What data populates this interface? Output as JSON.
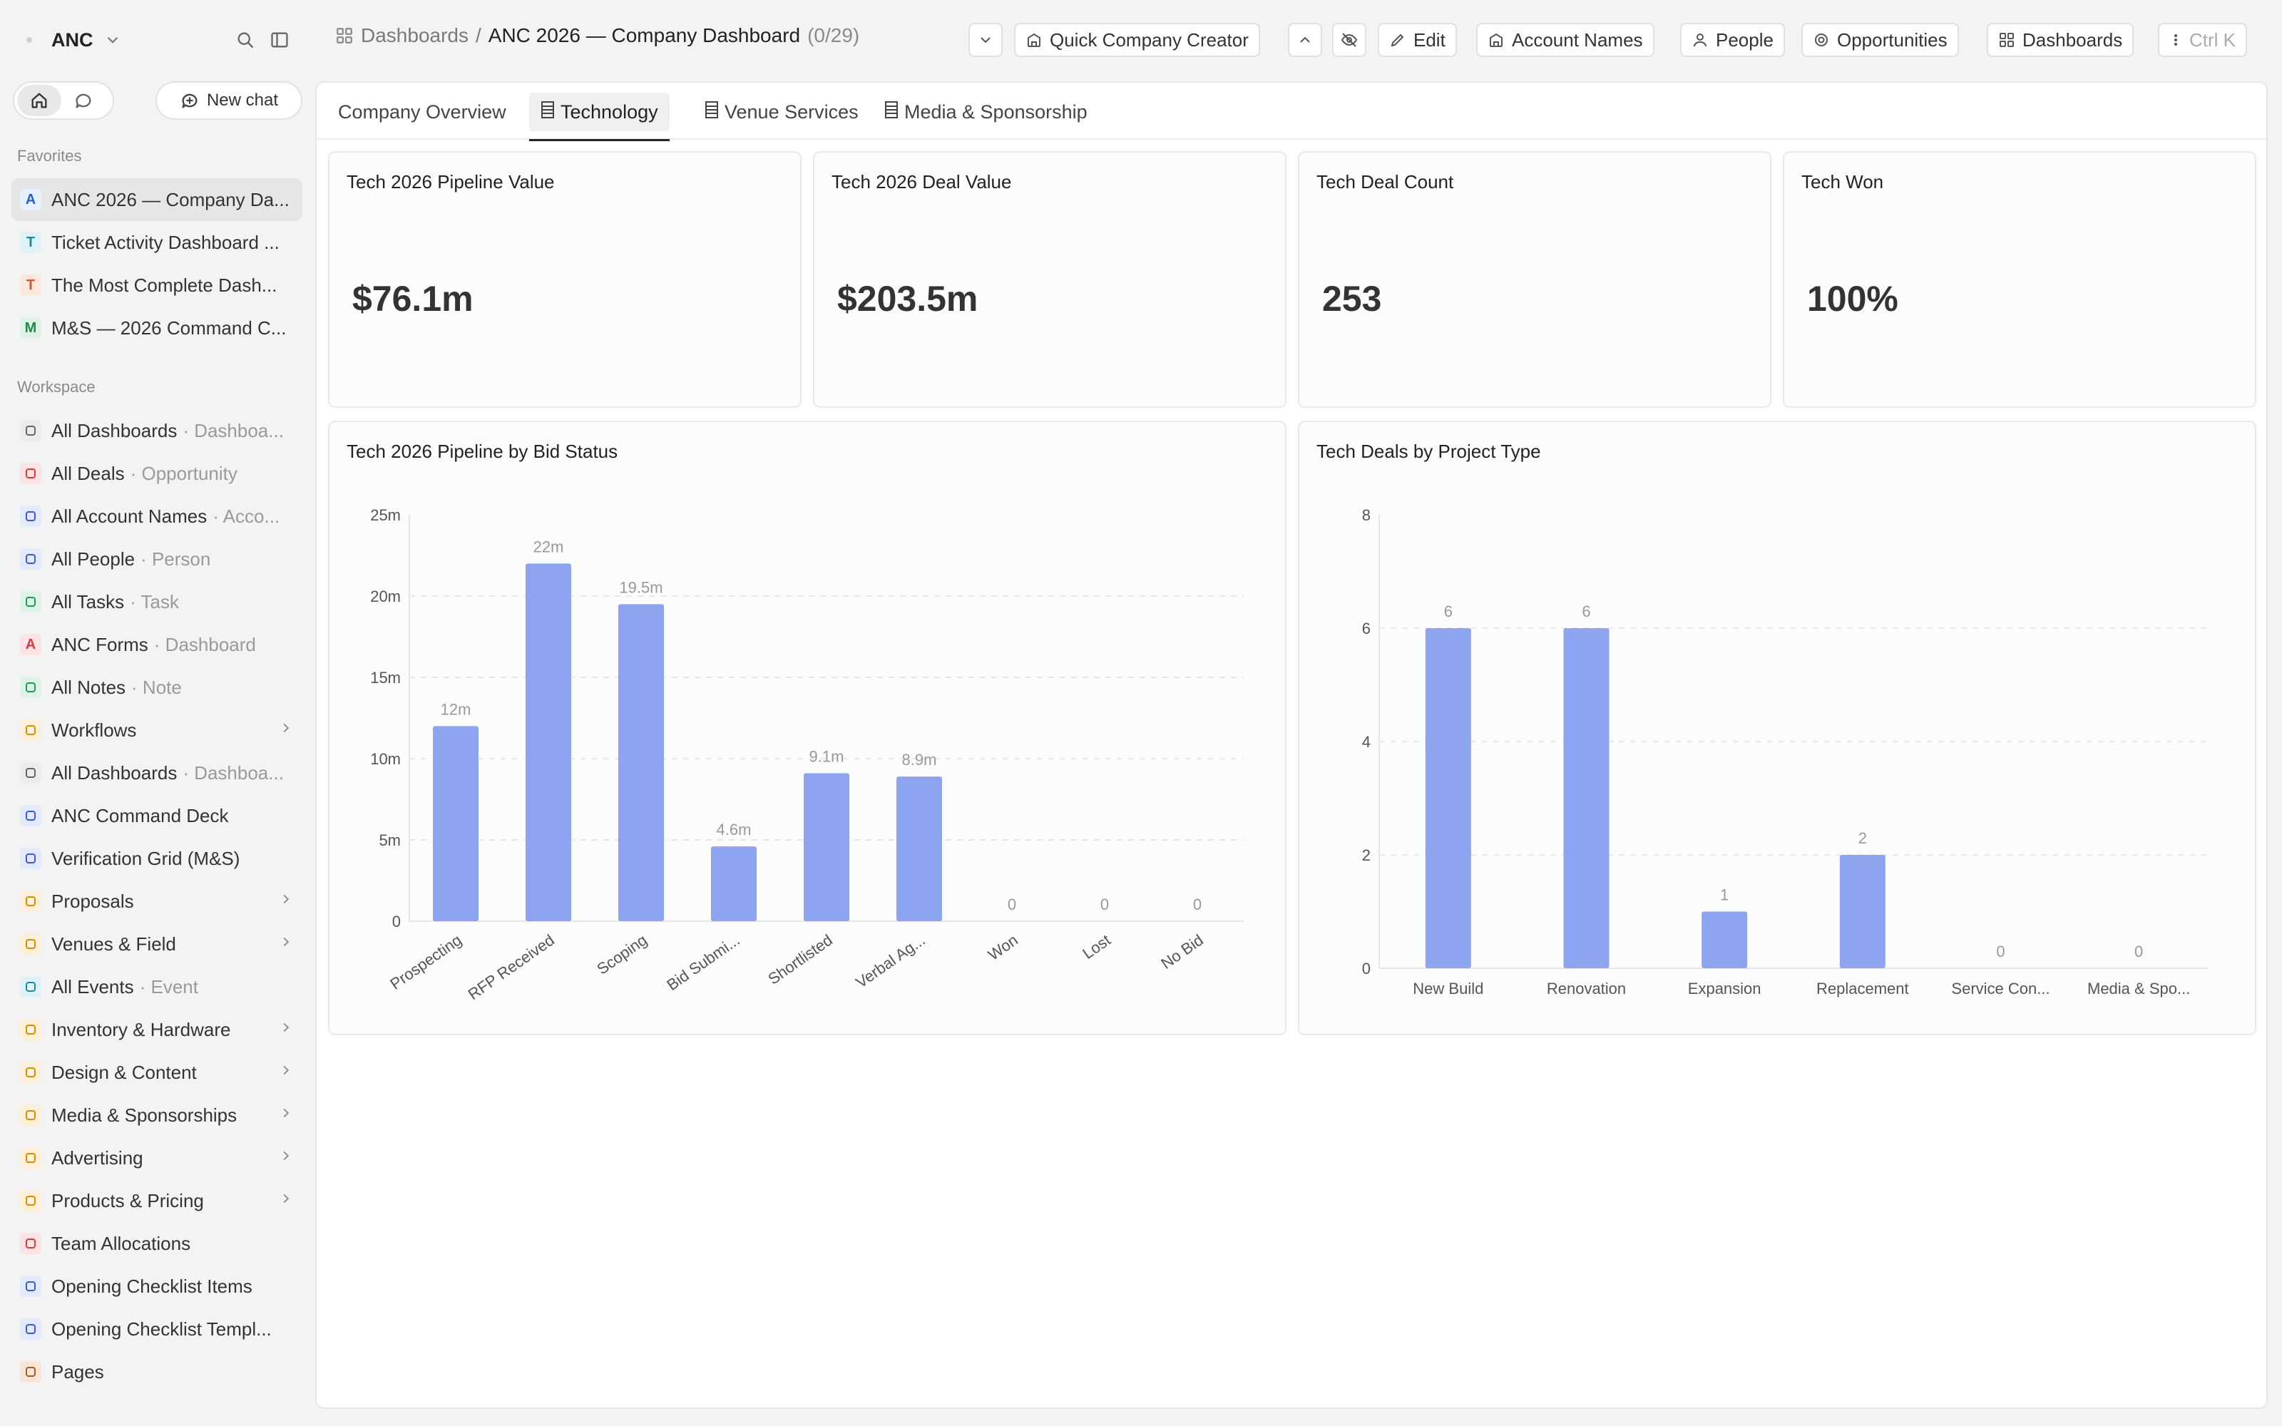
{
  "workspace": {
    "name": "ANC"
  },
  "sidebar": {
    "new_chat_label": "New chat",
    "favorites_label": "Favorites",
    "workspace_label": "Workspace",
    "favorites": [
      {
        "label": "ANC 2026 — Company Da...",
        "letter": "A",
        "bg": "#e6f0ff",
        "fg": "#2a5bd7",
        "active": true
      },
      {
        "label": "Ticket Activity Dashboard ...",
        "letter": "T",
        "bg": "#dff2f7",
        "fg": "#1b8aa8"
      },
      {
        "label": "The Most Complete Dash...",
        "letter": "T",
        "bg": "#fde8e0",
        "fg": "#d2562b"
      },
      {
        "label": "M&S — 2026 Command C...",
        "letter": "M",
        "bg": "#def3e6",
        "fg": "#1f8a4c"
      }
    ],
    "items": [
      {
        "label": "All Dashboards",
        "sub": "· Dashboa...",
        "icon": "dashboard-list-icon",
        "bg": "#ececec",
        "fg": "#666"
      },
      {
        "label": "All Deals",
        "sub": "· Opportunity",
        "icon": "target-icon",
        "bg": "#fde3e3",
        "fg": "#e03b3b"
      },
      {
        "label": "All Account Names",
        "sub": "· Acco...",
        "icon": "building-icon",
        "bg": "#e3e9ff",
        "fg": "#3b5bdb"
      },
      {
        "label": "All People",
        "sub": "· Person",
        "icon": "person-icon",
        "bg": "#e3e9ff",
        "fg": "#3b5bdb"
      },
      {
        "label": "All Tasks",
        "sub": "· Task",
        "icon": "task-check-icon",
        "bg": "#ddf3e6",
        "fg": "#1f9d55"
      },
      {
        "label": "ANC Forms",
        "sub": "· Dashboard",
        "icon": "letter-a-icon",
        "letter": "A",
        "bg": "#fde3e3",
        "fg": "#d63b3b"
      },
      {
        "label": "All Notes",
        "sub": "· Note",
        "icon": "note-icon",
        "bg": "#ddf3e6",
        "fg": "#1f9d55"
      },
      {
        "label": "Workflows",
        "sub": "",
        "icon": "workflow-icon",
        "bg": "#fff0d9",
        "fg": "#e08a00",
        "chev": true
      },
      {
        "label": "All Dashboards",
        "sub": "· Dashboa...",
        "icon": "dashboard-list-icon",
        "bg": "#ececec",
        "fg": "#666"
      },
      {
        "label": "ANC Command Deck",
        "sub": "",
        "icon": "grid-icon",
        "bg": "#e3e9ff",
        "fg": "#3b5bdb"
      },
      {
        "label": "Verification Grid (M&S)",
        "sub": "",
        "icon": "table-icon",
        "bg": "#e3e9ff",
        "fg": "#3b5bdb"
      },
      {
        "label": "Proposals",
        "sub": "",
        "icon": "chart-line-icon",
        "bg": "#fff0d9",
        "fg": "#e08a00",
        "chev": true
      },
      {
        "label": "Venues & Field",
        "sub": "",
        "icon": "building-icon",
        "bg": "#fff0d9",
        "fg": "#e08a00",
        "chev": true
      },
      {
        "label": "All Events",
        "sub": "· Event",
        "icon": "calendar-icon",
        "bg": "#dff2f7",
        "fg": "#1b8aa8"
      },
      {
        "label": "Inventory & Hardware",
        "sub": "",
        "icon": "box-icon",
        "bg": "#fff0d9",
        "fg": "#e08a00",
        "chev": true
      },
      {
        "label": "Design & Content",
        "sub": "",
        "icon": "palette-icon",
        "bg": "#fff0d9",
        "fg": "#e08a00",
        "chev": true
      },
      {
        "label": "Media & Sponsorships",
        "sub": "",
        "icon": "broadcast-icon",
        "bg": "#fff0d9",
        "fg": "#e08a00",
        "chev": true
      },
      {
        "label": "Advertising",
        "sub": "",
        "icon": "megaphone-icon",
        "bg": "#fff0d9",
        "fg": "#e08a00",
        "chev": true
      },
      {
        "label": "Products & Pricing",
        "sub": "",
        "icon": "box-icon",
        "bg": "#fff0d9",
        "fg": "#e08a00",
        "chev": true
      },
      {
        "label": "Team Allocations",
        "sub": "",
        "icon": "target-icon",
        "bg": "#fde3e3",
        "fg": "#e03b3b"
      },
      {
        "label": "Opening Checklist Items",
        "sub": "",
        "icon": "checklist-icon",
        "bg": "#e3e9ff",
        "fg": "#3b5bdb"
      },
      {
        "label": "Opening Checklist Templ...",
        "sub": "",
        "icon": "template-icon",
        "bg": "#e3e9ff",
        "fg": "#3b5bdb"
      },
      {
        "label": "Pages",
        "sub": "",
        "icon": "page-icon",
        "bg": "#f7e6d6",
        "fg": "#a0602a"
      }
    ]
  },
  "header": {
    "breadcrumb_root": "Dashboards",
    "breadcrumb_sep": "/",
    "title": "ANC 2026 — Company Dashboard",
    "count": "(0/29)",
    "buttons": {
      "quick_company": "Quick Company Creator",
      "edit": "Edit",
      "account_names": "Account Names",
      "people": "People",
      "opportunities": "Opportunities",
      "dashboards": "Dashboards",
      "shortcut": "Ctrl K"
    }
  },
  "tabs": [
    {
      "label": "Company Overview",
      "active": false
    },
    {
      "label": "Technology",
      "active": true
    },
    {
      "label": "Venue Services",
      "active": false
    },
    {
      "label": "Media & Sponsorship",
      "active": false
    }
  ],
  "kpis": [
    {
      "title": "Tech 2026 Pipeline Value",
      "value": "$76.1m"
    },
    {
      "title": "Tech 2026 Deal Value",
      "value": "$203.5m"
    },
    {
      "title": "Tech Deal Count",
      "value": "253"
    },
    {
      "title": "Tech Won",
      "value": "100%"
    }
  ],
  "chart_data": [
    {
      "type": "bar",
      "title": "Tech 2026 Pipeline by Bid Status",
      "categories": [
        "Prospecting",
        "RFP Received",
        "Scoping",
        "Bid Submi...",
        "Shortlisted",
        "Verbal Ag...",
        "Won",
        "Lost",
        "No Bid"
      ],
      "values": [
        12,
        22,
        19.5,
        4.6,
        9.1,
        8.9,
        0,
        0,
        0
      ],
      "value_labels": [
        "12m",
        "22m",
        "19.5m",
        "4.6m",
        "9.1m",
        "8.9m",
        "0",
        "0",
        "0"
      ],
      "ylim": [
        0,
        25
      ],
      "yticks": [
        0,
        5,
        10,
        15,
        20,
        25
      ],
      "ytick_labels": [
        "0",
        "5m",
        "10m",
        "15m",
        "20m",
        "25m"
      ],
      "grid": true,
      "bar_color": "#8da4f0",
      "rotate_labels": true
    },
    {
      "type": "bar",
      "title": "Tech Deals by Project Type",
      "categories": [
        "New Build",
        "Renovation",
        "Expansion",
        "Replacement",
        "Service Con...",
        "Media & Spo..."
      ],
      "values": [
        6,
        6,
        1,
        2,
        0,
        0
      ],
      "value_labels": [
        "6",
        "6",
        "1",
        "2",
        "0",
        "0"
      ],
      "ylim": [
        0,
        8
      ],
      "yticks": [
        0,
        2,
        4,
        6,
        8
      ],
      "ytick_labels": [
        "0",
        "2",
        "4",
        "6",
        "8"
      ],
      "grid": true,
      "bar_color": "#8da4f0",
      "rotate_labels": false
    }
  ]
}
